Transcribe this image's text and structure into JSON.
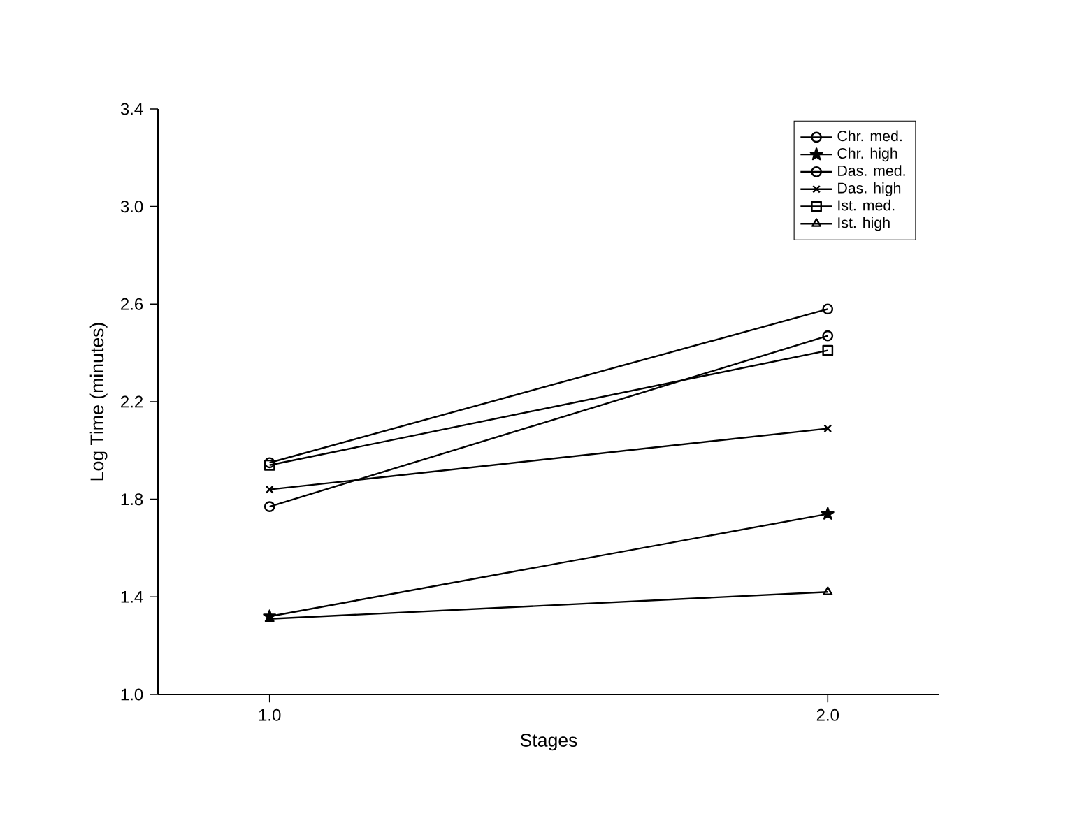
{
  "chart_data": {
    "type": "line",
    "xlabel": "Stages",
    "ylabel": "Log Time (minutes)",
    "x": [
      1.0,
      2.0
    ],
    "xlim": [
      0.8,
      2.2
    ],
    "xticks": [
      {
        "value": 1,
        "label": "1.0"
      },
      {
        "value": 2,
        "label": "2.0"
      }
    ],
    "ylim": [
      1.0,
      3.4
    ],
    "yticks": [
      {
        "value": 1,
        "label": "1.0"
      },
      1.4,
      1.8,
      2.2,
      2.6,
      {
        "value": 3,
        "label": "3.0"
      },
      3.4
    ],
    "legend": "top right",
    "grid": false,
    "line_style": "solid",
    "series": [
      {
        "name": "Chr. med.",
        "color": "#000000",
        "marker": "circle",
        "values": [
          1.95,
          2.58
        ]
      },
      {
        "name": "Chr. high",
        "color": "#000000",
        "marker": "star",
        "values": [
          1.32,
          1.74
        ]
      },
      {
        "name": "Das. med.",
        "color": "#000000",
        "marker": "circle",
        "values": [
          1.77,
          2.47
        ]
      },
      {
        "name": "Das. high",
        "color": "#000000",
        "marker": "cross",
        "values": [
          1.84,
          2.09
        ]
      },
      {
        "name": "Ist. med.",
        "color": "#000000",
        "marker": "square",
        "values": [
          1.94,
          2.41
        ]
      },
      {
        "name": "Ist. high",
        "color": "#000000",
        "marker": "triangle",
        "values": [
          1.31,
          1.42
        ]
      }
    ]
  }
}
